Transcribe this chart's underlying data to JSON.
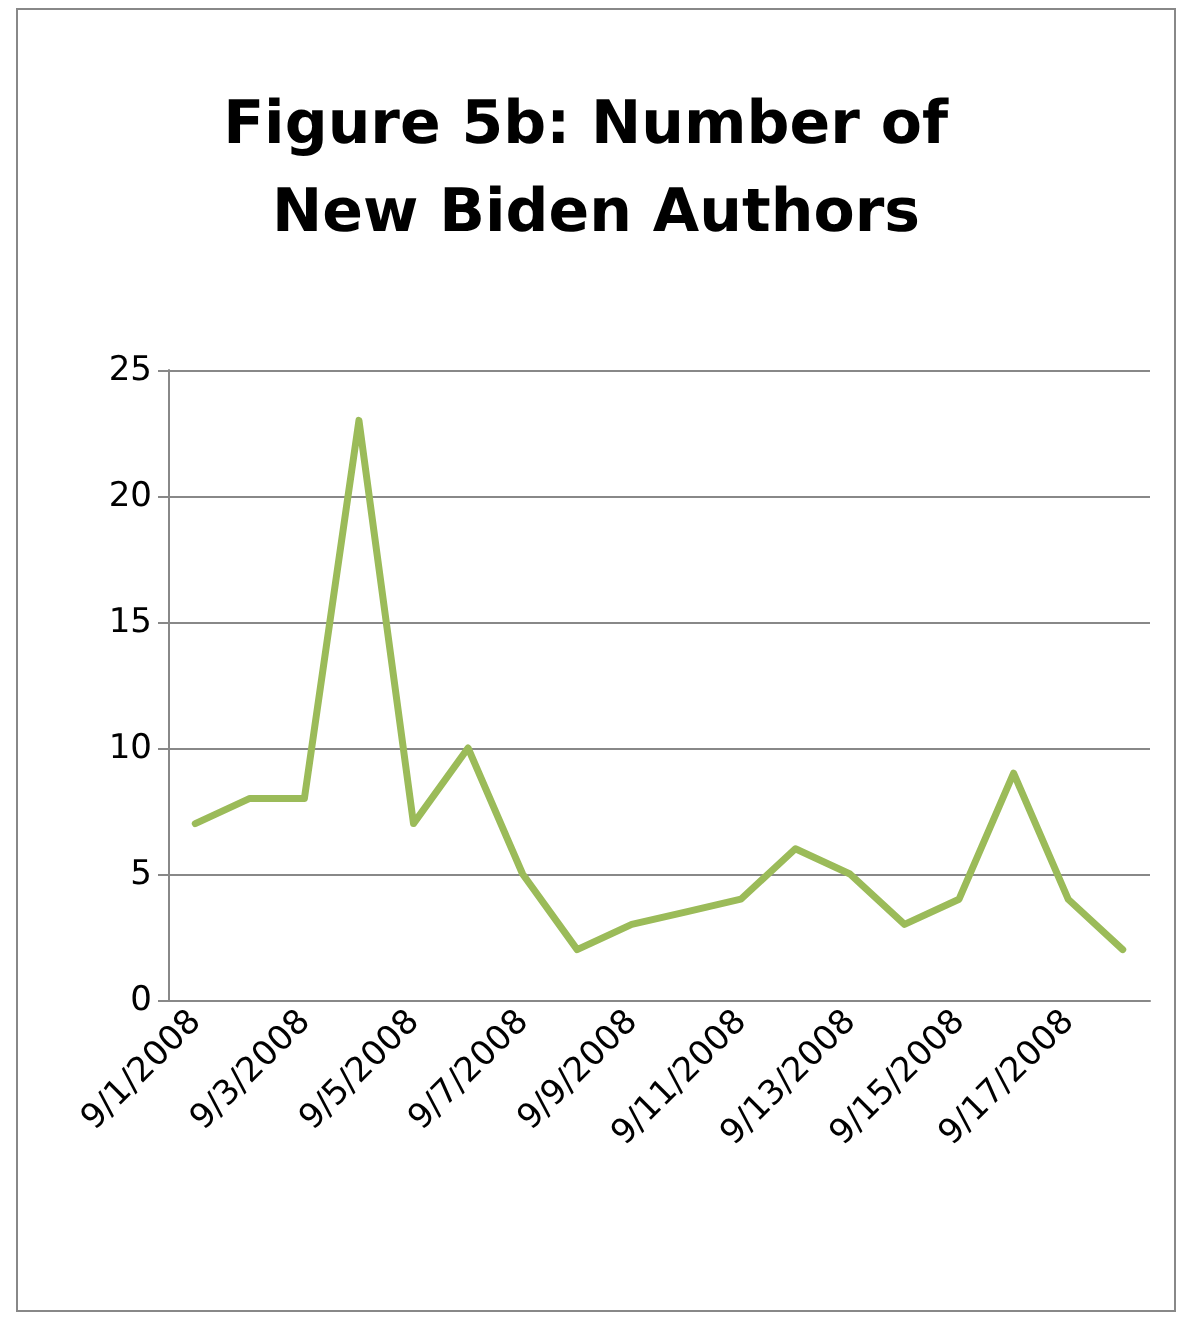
{
  "chart_data": {
    "type": "line",
    "title": "Figure 5b: Number of New Biden Authors",
    "categories": [
      "9/1/2008",
      null,
      "9/3/2008",
      null,
      "9/5/2008",
      null,
      "9/7/2008",
      null,
      "9/9/2008",
      null,
      "9/11/2008",
      null,
      "9/13/2008",
      null,
      "9/15/2008",
      null,
      "9/17/2008",
      null
    ],
    "series": [
      {
        "color": "#9bbb59",
        "values": [
          7,
          8,
          8,
          23,
          7,
          10,
          5,
          2,
          3,
          3.5,
          4,
          6,
          5,
          3,
          4,
          9,
          4,
          2
        ]
      }
    ],
    "ylim": [
      0,
      25
    ],
    "yticks": [
      0,
      5,
      10,
      15,
      20,
      25
    ],
    "grid": "y",
    "legend": false,
    "marker": "none",
    "line_style": "solid"
  }
}
